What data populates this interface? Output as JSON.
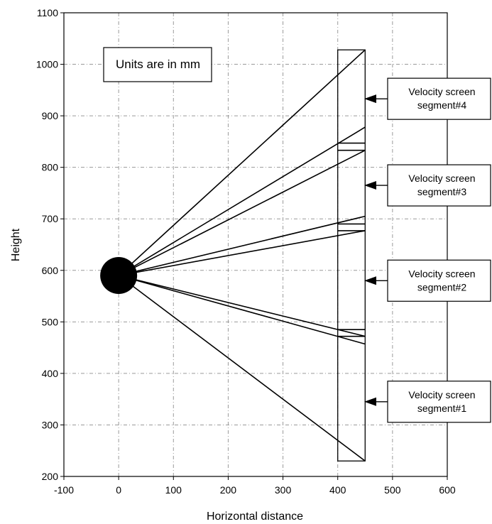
{
  "chart_data": {
    "type": "line",
    "xlabel": "Horizontal distance",
    "ylabel": "Height",
    "xlim": [
      -100,
      600
    ],
    "ylim": [
      200,
      1100
    ],
    "xticks": [
      -100,
      0,
      100,
      200,
      300,
      400,
      500,
      600
    ],
    "yticks": [
      200,
      300,
      400,
      500,
      600,
      700,
      800,
      900,
      1000,
      1100
    ],
    "grid": true,
    "note": "Units are in mm",
    "source": {
      "x": 0,
      "y": 590
    },
    "screen_rect": {
      "x": [
        400,
        450
      ],
      "y": [
        230,
        1028
      ]
    },
    "dividers": [
      {
        "x": [
          400,
          450
        ],
        "y": 847
      },
      {
        "x": [
          400,
          450
        ],
        "y": 833
      },
      {
        "x": [
          400,
          450
        ],
        "y": 690
      },
      {
        "x": [
          400,
          450
        ],
        "y": 677
      },
      {
        "x": [
          400,
          450
        ],
        "y": 485
      },
      {
        "x": [
          400,
          450
        ],
        "y": 472
      }
    ],
    "rays": [
      {
        "x": [
          0,
          450
        ],
        "y": [
          590,
          1028
        ]
      },
      {
        "x": [
          0,
          450
        ],
        "y": [
          590,
          878
        ]
      },
      {
        "x": [
          0,
          450
        ],
        "y": [
          590,
          833
        ]
      },
      {
        "x": [
          0,
          450
        ],
        "y": [
          590,
          705
        ]
      },
      {
        "x": [
          0,
          450
        ],
        "y": [
          590,
          677
        ]
      },
      {
        "x": [
          0,
          450
        ],
        "y": [
          590,
          472
        ]
      },
      {
        "x": [
          0,
          450
        ],
        "y": [
          590,
          457
        ]
      },
      {
        "x": [
          0,
          450
        ],
        "y": [
          590,
          230
        ]
      }
    ],
    "annotations": [
      {
        "lines": [
          "Velocity screen",
          "segment#4"
        ],
        "arrow_y": 933
      },
      {
        "lines": [
          "Velocity screen",
          "segment#3"
        ],
        "arrow_y": 765
      },
      {
        "lines": [
          "Velocity screen",
          "segment#2"
        ],
        "arrow_y": 580
      },
      {
        "lines": [
          "Velocity screen",
          "segment#1"
        ],
        "arrow_y": 345
      }
    ]
  }
}
